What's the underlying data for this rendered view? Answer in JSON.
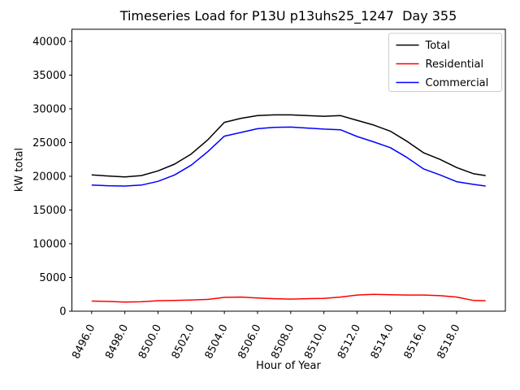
{
  "chart_data": {
    "type": "line",
    "title": "Timeseries Load for P13U p13uhs25_1247  Day 355",
    "xlabel": "Hour of Year",
    "ylabel": "kW total",
    "xlim": [
      8494.81,
      8520.94
    ],
    "ylim": [
      0,
      41800
    ],
    "grid": false,
    "legend_position": "upper right",
    "xtick_values": [
      8496,
      8498,
      8500,
      8502,
      8504,
      8506,
      8508,
      8510,
      8512,
      8514,
      8516,
      8518
    ],
    "xtick_labels": [
      "8496.0",
      "8498.0",
      "8500.0",
      "8502.0",
      "8504.0",
      "8506.0",
      "8508.0",
      "8510.0",
      "8512.0",
      "8514.0",
      "8516.0",
      "8518.0"
    ],
    "ytick_values": [
      0,
      5000,
      10000,
      15000,
      20000,
      25000,
      30000,
      35000,
      40000
    ],
    "ytick_labels": [
      "0",
      "5000",
      "10000",
      "15000",
      "20000",
      "25000",
      "30000",
      "35000",
      "40000"
    ],
    "x": [
      8496,
      8497,
      8498,
      8499,
      8500,
      8501,
      8502,
      8503,
      8504,
      8505,
      8506,
      8507,
      8508,
      8509,
      8510,
      8511,
      8512,
      8513,
      8514,
      8515,
      8516,
      8517,
      8518,
      8519,
      8519.75
    ],
    "series": [
      {
        "name": "Total",
        "color": "#000000",
        "values": [
          20200,
          20050,
          19900,
          20100,
          20800,
          21800,
          23300,
          25400,
          28000,
          28600,
          29000,
          29100,
          29100,
          29000,
          28900,
          29000,
          28300,
          27600,
          26700,
          25200,
          23500,
          22500,
          21300,
          20400,
          20100
        ]
      },
      {
        "name": "Residential",
        "color": "#ff0000",
        "values": [
          1500,
          1450,
          1350,
          1400,
          1550,
          1600,
          1650,
          1750,
          2050,
          2100,
          1950,
          1850,
          1800,
          1850,
          1900,
          2100,
          2400,
          2500,
          2450,
          2400,
          2400,
          2300,
          2100,
          1600,
          1550
        ]
      },
      {
        "name": "Commercial",
        "color": "#0000ff",
        "values": [
          18700,
          18600,
          18550,
          18700,
          19250,
          20200,
          21650,
          23650,
          25950,
          26500,
          27050,
          27250,
          27300,
          27150,
          27000,
          26900,
          25900,
          25100,
          24250,
          22800,
          21100,
          20200,
          19200,
          18800,
          18550
        ]
      }
    ],
    "legend": {
      "labels": [
        "Total",
        "Residential",
        "Commercial"
      ],
      "edge_color": "#cccccc",
      "background": "#ffffff"
    },
    "spine_color": "#000000",
    "background_color": "#ffffff"
  }
}
